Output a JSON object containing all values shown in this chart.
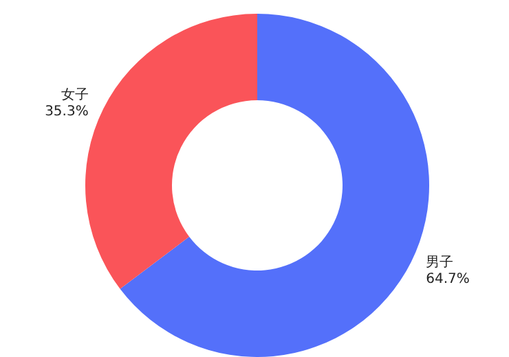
{
  "chart_data": {
    "type": "donut",
    "categories": [
      "男子",
      "女子"
    ],
    "values": [
      64.7,
      35.3
    ],
    "value_labels": [
      "64.7%",
      "35.3%"
    ],
    "colors": [
      "#5470fa",
      "#fa5459"
    ],
    "legend": false
  }
}
